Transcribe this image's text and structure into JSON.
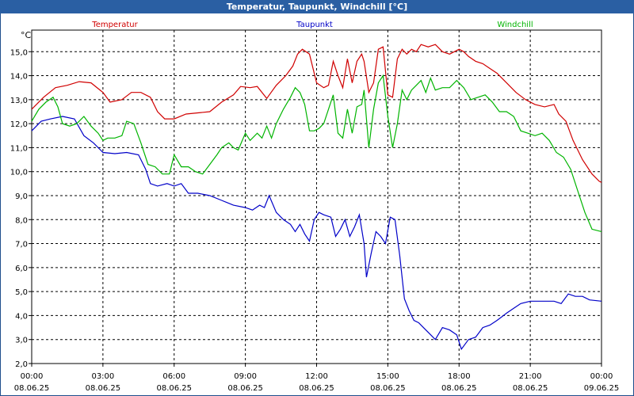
{
  "window": {
    "title": "Temperatur, Taupunkt, Windchill [°C]"
  },
  "chart_data": {
    "type": "line",
    "title": "Temperatur, Taupunkt, Windchill [°C]",
    "ylabel": "°C",
    "xlabel": "",
    "ylim": [
      2.0,
      15.9
    ],
    "xlim": [
      0,
      24
    ],
    "grid": true,
    "yticks": [
      "2,0",
      "3,0",
      "4,0",
      "5,0",
      "6,0",
      "7,0",
      "8,0",
      "9,0",
      "10,0",
      "11,0",
      "12,0",
      "13,0",
      "14,0",
      "15,0"
    ],
    "xticks": [
      {
        "time": "00:00",
        "date": "08.06.25"
      },
      {
        "time": "03:00",
        "date": "08.06.25"
      },
      {
        "time": "06:00",
        "date": "08.06.25"
      },
      {
        "time": "09:00",
        "date": "08.06.25"
      },
      {
        "time": "12:00",
        "date": "08.06.25"
      },
      {
        "time": "15:00",
        "date": "08.06.25"
      },
      {
        "time": "18:00",
        "date": "08.06.25"
      },
      {
        "time": "21:00",
        "date": "08.06.25"
      },
      {
        "time": "00:00",
        "date": "09.06.25"
      }
    ],
    "series": [
      {
        "name": "Temperatur",
        "color": "#d00000",
        "points": [
          [
            0,
            12.6
          ],
          [
            0.5,
            13.1
          ],
          [
            1,
            13.5
          ],
          [
            1.5,
            13.6
          ],
          [
            2,
            13.75
          ],
          [
            2.5,
            13.7
          ],
          [
            3,
            13.3
          ],
          [
            3.3,
            12.9
          ],
          [
            3.8,
            13.0
          ],
          [
            4.2,
            13.3
          ],
          [
            4.6,
            13.3
          ],
          [
            5,
            13.1
          ],
          [
            5.3,
            12.5
          ],
          [
            5.6,
            12.2
          ],
          [
            6,
            12.2
          ],
          [
            6.5,
            12.4
          ],
          [
            7,
            12.45
          ],
          [
            7.5,
            12.5
          ],
          [
            8,
            12.9
          ],
          [
            8.5,
            13.2
          ],
          [
            8.8,
            13.55
          ],
          [
            9.2,
            13.5
          ],
          [
            9.5,
            13.55
          ],
          [
            9.9,
            13.05
          ],
          [
            10.3,
            13.6
          ],
          [
            10.7,
            14.0
          ],
          [
            11,
            14.4
          ],
          [
            11.2,
            14.9
          ],
          [
            11.4,
            15.1
          ],
          [
            11.7,
            14.9
          ],
          [
            12,
            13.7
          ],
          [
            12.3,
            13.5
          ],
          [
            12.5,
            13.6
          ],
          [
            12.7,
            14.6
          ],
          [
            12.9,
            14.0
          ],
          [
            13.1,
            13.5
          ],
          [
            13.3,
            14.7
          ],
          [
            13.5,
            13.7
          ],
          [
            13.7,
            14.6
          ],
          [
            13.9,
            14.9
          ],
          [
            14.0,
            14.6
          ],
          [
            14.2,
            13.3
          ],
          [
            14.4,
            13.7
          ],
          [
            14.6,
            15.1
          ],
          [
            14.8,
            15.2
          ],
          [
            15.0,
            13.2
          ],
          [
            15.2,
            13.1
          ],
          [
            15.4,
            14.7
          ],
          [
            15.6,
            15.1
          ],
          [
            15.8,
            14.9
          ],
          [
            16,
            15.1
          ],
          [
            16.2,
            15.0
          ],
          [
            16.4,
            15.3
          ],
          [
            16.7,
            15.2
          ],
          [
            17,
            15.3
          ],
          [
            17.3,
            15.0
          ],
          [
            17.6,
            14.9
          ],
          [
            18,
            15.1
          ],
          [
            18.2,
            15.0
          ],
          [
            18.4,
            14.8
          ],
          [
            18.7,
            14.6
          ],
          [
            19,
            14.5
          ],
          [
            19.3,
            14.3
          ],
          [
            19.6,
            14.1
          ],
          [
            20,
            13.7
          ],
          [
            20.4,
            13.3
          ],
          [
            20.8,
            13.0
          ],
          [
            21.2,
            12.8
          ],
          [
            21.6,
            12.7
          ],
          [
            22,
            12.8
          ],
          [
            22.2,
            12.4
          ],
          [
            22.5,
            12.1
          ],
          [
            22.8,
            11.3
          ],
          [
            23.2,
            10.5
          ],
          [
            23.6,
            9.9
          ],
          [
            23.9,
            9.6
          ],
          [
            24,
            9.55
          ]
        ]
      },
      {
        "name": "Taupunkt",
        "color": "#0000c8",
        "points": [
          [
            0,
            11.7
          ],
          [
            0.4,
            12.1
          ],
          [
            0.8,
            12.2
          ],
          [
            1.3,
            12.3
          ],
          [
            1.8,
            12.2
          ],
          [
            2.2,
            11.5
          ],
          [
            2.6,
            11.2
          ],
          [
            3,
            10.8
          ],
          [
            3.5,
            10.75
          ],
          [
            4,
            10.8
          ],
          [
            4.5,
            10.7
          ],
          [
            4.8,
            10.1
          ],
          [
            5,
            9.5
          ],
          [
            5.3,
            9.4
          ],
          [
            5.7,
            9.5
          ],
          [
            6,
            9.4
          ],
          [
            6.3,
            9.5
          ],
          [
            6.6,
            9.1
          ],
          [
            7,
            9.1
          ],
          [
            7.5,
            9.0
          ],
          [
            8,
            8.8
          ],
          [
            8.5,
            8.6
          ],
          [
            9,
            8.5
          ],
          [
            9.3,
            8.4
          ],
          [
            9.6,
            8.6
          ],
          [
            9.8,
            8.5
          ],
          [
            10,
            9.0
          ],
          [
            10.3,
            8.3
          ],
          [
            10.6,
            8.0
          ],
          [
            10.9,
            7.8
          ],
          [
            11.1,
            7.5
          ],
          [
            11.3,
            7.8
          ],
          [
            11.5,
            7.4
          ],
          [
            11.7,
            7.1
          ],
          [
            11.9,
            8.0
          ],
          [
            12.1,
            8.3
          ],
          [
            12.3,
            8.2
          ],
          [
            12.6,
            8.1
          ],
          [
            12.8,
            7.3
          ],
          [
            13,
            7.6
          ],
          [
            13.2,
            8.0
          ],
          [
            13.4,
            7.3
          ],
          [
            13.6,
            7.7
          ],
          [
            13.8,
            8.2
          ],
          [
            14,
            7.0
          ],
          [
            14.1,
            5.6
          ],
          [
            14.3,
            6.6
          ],
          [
            14.5,
            7.5
          ],
          [
            14.7,
            7.3
          ],
          [
            14.9,
            7.0
          ],
          [
            15.1,
            8.1
          ],
          [
            15.3,
            8.0
          ],
          [
            15.5,
            6.5
          ],
          [
            15.7,
            4.7
          ],
          [
            15.9,
            4.2
          ],
          [
            16.1,
            3.8
          ],
          [
            16.3,
            3.7
          ],
          [
            16.5,
            3.5
          ],
          [
            16.7,
            3.3
          ],
          [
            17,
            3.0
          ],
          [
            17.3,
            3.5
          ],
          [
            17.6,
            3.4
          ],
          [
            17.9,
            3.2
          ],
          [
            18.1,
            2.6
          ],
          [
            18.4,
            3.0
          ],
          [
            18.7,
            3.1
          ],
          [
            19,
            3.5
          ],
          [
            19.3,
            3.6
          ],
          [
            19.6,
            3.8
          ],
          [
            20,
            4.1
          ],
          [
            20.3,
            4.3
          ],
          [
            20.6,
            4.5
          ],
          [
            21,
            4.6
          ],
          [
            21.3,
            4.6
          ],
          [
            21.6,
            4.6
          ],
          [
            22,
            4.6
          ],
          [
            22.3,
            4.5
          ],
          [
            22.6,
            4.9
          ],
          [
            22.9,
            4.8
          ],
          [
            23.2,
            4.8
          ],
          [
            23.5,
            4.65
          ],
          [
            24,
            4.6
          ]
        ]
      },
      {
        "name": "Windchill",
        "color": "#00b400",
        "points": [
          [
            0,
            12.1
          ],
          [
            0.3,
            12.6
          ],
          [
            0.6,
            12.9
          ],
          [
            0.9,
            13.1
          ],
          [
            1.1,
            12.7
          ],
          [
            1.3,
            12.0
          ],
          [
            1.6,
            11.9
          ],
          [
            1.9,
            12.0
          ],
          [
            2.2,
            12.3
          ],
          [
            2.5,
            11.9
          ],
          [
            2.8,
            11.6
          ],
          [
            3,
            11.3
          ],
          [
            3.2,
            11.4
          ],
          [
            3.5,
            11.4
          ],
          [
            3.8,
            11.5
          ],
          [
            4,
            12.1
          ],
          [
            4.3,
            12.0
          ],
          [
            4.6,
            11.2
          ],
          [
            4.9,
            10.3
          ],
          [
            5.2,
            10.2
          ],
          [
            5.5,
            9.9
          ],
          [
            5.8,
            9.9
          ],
          [
            6,
            10.7
          ],
          [
            6.3,
            10.2
          ],
          [
            6.6,
            10.2
          ],
          [
            6.9,
            10.0
          ],
          [
            7.2,
            9.9
          ],
          [
            7.5,
            10.3
          ],
          [
            7.8,
            10.7
          ],
          [
            8,
            11.0
          ],
          [
            8.3,
            11.2
          ],
          [
            8.5,
            11.0
          ],
          [
            8.7,
            10.9
          ],
          [
            9,
            11.6
          ],
          [
            9.2,
            11.3
          ],
          [
            9.5,
            11.6
          ],
          [
            9.7,
            11.4
          ],
          [
            9.9,
            11.9
          ],
          [
            10.1,
            11.4
          ],
          [
            10.3,
            12.0
          ],
          [
            10.6,
            12.6
          ],
          [
            10.9,
            13.1
          ],
          [
            11.1,
            13.5
          ],
          [
            11.3,
            13.3
          ],
          [
            11.5,
            12.8
          ],
          [
            11.7,
            11.7
          ],
          [
            11.9,
            11.7
          ],
          [
            12.1,
            11.8
          ],
          [
            12.3,
            12.0
          ],
          [
            12.5,
            12.6
          ],
          [
            12.7,
            13.2
          ],
          [
            12.9,
            11.6
          ],
          [
            13.1,
            11.4
          ],
          [
            13.3,
            12.6
          ],
          [
            13.5,
            11.6
          ],
          [
            13.7,
            12.7
          ],
          [
            13.9,
            12.8
          ],
          [
            14,
            13.4
          ],
          [
            14.2,
            11.0
          ],
          [
            14.4,
            12.6
          ],
          [
            14.6,
            13.7
          ],
          [
            14.8,
            14.0
          ],
          [
            15.0,
            12.3
          ],
          [
            15.2,
            11.0
          ],
          [
            15.4,
            12.0
          ],
          [
            15.6,
            13.4
          ],
          [
            15.8,
            13.0
          ],
          [
            16,
            13.4
          ],
          [
            16.2,
            13.6
          ],
          [
            16.4,
            13.8
          ],
          [
            16.6,
            13.3
          ],
          [
            16.8,
            13.9
          ],
          [
            17,
            13.4
          ],
          [
            17.3,
            13.5
          ],
          [
            17.6,
            13.5
          ],
          [
            17.9,
            13.8
          ],
          [
            18.2,
            13.5
          ],
          [
            18.5,
            13.0
          ],
          [
            18.8,
            13.1
          ],
          [
            19.1,
            13.2
          ],
          [
            19.4,
            12.9
          ],
          [
            19.7,
            12.5
          ],
          [
            20,
            12.5
          ],
          [
            20.3,
            12.3
          ],
          [
            20.6,
            11.7
          ],
          [
            20.9,
            11.6
          ],
          [
            21.2,
            11.5
          ],
          [
            21.5,
            11.6
          ],
          [
            21.8,
            11.3
          ],
          [
            22.1,
            10.8
          ],
          [
            22.4,
            10.6
          ],
          [
            22.7,
            10.1
          ],
          [
            23,
            9.2
          ],
          [
            23.3,
            8.3
          ],
          [
            23.6,
            7.6
          ],
          [
            24,
            7.5
          ]
        ]
      }
    ]
  }
}
